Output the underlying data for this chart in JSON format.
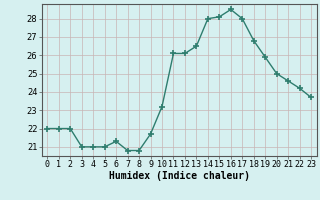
{
  "x": [
    0,
    1,
    2,
    3,
    4,
    5,
    6,
    7,
    8,
    9,
    10,
    11,
    12,
    13,
    14,
    15,
    16,
    17,
    18,
    19,
    20,
    21,
    22,
    23
  ],
  "y": [
    22,
    22,
    22,
    21,
    21,
    21,
    21.3,
    20.8,
    20.8,
    21.7,
    23.2,
    26.1,
    26.1,
    26.5,
    28.0,
    28.1,
    28.5,
    28.0,
    26.8,
    25.9,
    25.0,
    24.6,
    24.2,
    23.7
  ],
  "line_color": "#2e7d6e",
  "marker": "+",
  "marker_size": 4,
  "marker_linewidth": 1.2,
  "line_width": 1.0,
  "bg_color": "#d6f0f0",
  "grid_color_v": "#c8b4b4",
  "grid_color_h": "#c8b4b4",
  "xlabel": "Humidex (Indice chaleur)",
  "xlim": [
    -0.5,
    23.5
  ],
  "ylim": [
    20.5,
    28.8
  ],
  "yticks": [
    21,
    22,
    23,
    24,
    25,
    26,
    27,
    28
  ],
  "xtick_labels": [
    "0",
    "1",
    "2",
    "3",
    "4",
    "5",
    "6",
    "7",
    "8",
    "9",
    "10",
    "11",
    "12",
    "13",
    "14",
    "15",
    "16",
    "17",
    "18",
    "19",
    "20",
    "21",
    "22",
    "23"
  ],
  "xlabel_fontsize": 7,
  "tick_fontsize": 6
}
